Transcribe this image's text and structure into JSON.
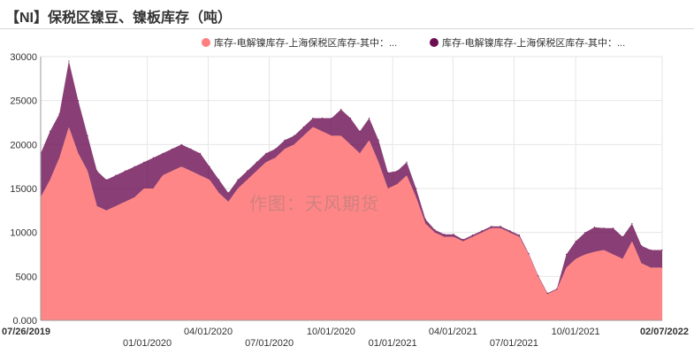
{
  "title": "【NI】保税区镍豆、镍板库存（吨）",
  "watermark": "作图：天风期货",
  "legend": [
    {
      "label": "库存-电解镍库存-上海保税区库存-其中：...",
      "color": "#ff7f7f"
    },
    {
      "label": "库存-电解镍库存-上海保税区库存-其中：...",
      "color": "#6b0f52"
    }
  ],
  "chart_data": {
    "type": "area",
    "stacked": true,
    "title": "【NI】保税区镍豆、镍板库存（吨）",
    "xlabel": "",
    "ylabel": "",
    "ylim": [
      0,
      30000
    ],
    "y_ticks": [
      "0.000",
      "5000",
      "10000",
      "15000",
      "20000",
      "25000",
      "30000"
    ],
    "x_ticks": [
      {
        "label": "07/26/2019",
        "date": "2019-07-26",
        "row": 0,
        "bold": true
      },
      {
        "label": "01/01/2020",
        "date": "2020-01-01",
        "row": 1,
        "bold": false
      },
      {
        "label": "04/01/2020",
        "date": "2020-04-01",
        "row": 0,
        "bold": false
      },
      {
        "label": "07/01/2020",
        "date": "2020-07-01",
        "row": 1,
        "bold": false
      },
      {
        "label": "10/01/2020",
        "date": "2020-10-01",
        "row": 0,
        "bold": false
      },
      {
        "label": "01/01/2021",
        "date": "2021-01-01",
        "row": 1,
        "bold": false
      },
      {
        "label": "04/01/2021",
        "date": "2021-04-01",
        "row": 0,
        "bold": false
      },
      {
        "label": "07/01/2021",
        "date": "2021-07-01",
        "row": 1,
        "bold": false
      },
      {
        "label": "10/01/2021",
        "date": "2021-10-01",
        "row": 0,
        "bold": false
      },
      {
        "label": "02/07/2022",
        "date": "2022-02-07",
        "row": 0,
        "bold": true
      }
    ],
    "x_range": [
      "2019-07-26",
      "2022-02-07"
    ],
    "grid": true,
    "legend_position": "top-right",
    "x": [
      "2019-07-26",
      "2019-08-09",
      "2019-08-23",
      "2019-09-06",
      "2019-09-20",
      "2019-10-04",
      "2019-10-18",
      "2019-11-01",
      "2019-11-15",
      "2019-11-29",
      "2019-12-13",
      "2019-12-27",
      "2020-01-10",
      "2020-01-24",
      "2020-02-07",
      "2020-02-21",
      "2020-03-06",
      "2020-03-20",
      "2020-04-03",
      "2020-04-17",
      "2020-05-01",
      "2020-05-15",
      "2020-05-29",
      "2020-06-12",
      "2020-06-26",
      "2020-07-10",
      "2020-07-24",
      "2020-08-07",
      "2020-08-21",
      "2020-09-04",
      "2020-09-18",
      "2020-10-02",
      "2020-10-16",
      "2020-10-30",
      "2020-11-13",
      "2020-11-27",
      "2020-12-11",
      "2020-12-25",
      "2021-01-08",
      "2021-01-22",
      "2021-02-05",
      "2021-02-19",
      "2021-03-05",
      "2021-03-19",
      "2021-04-02",
      "2021-04-16",
      "2021-04-30",
      "2021-05-14",
      "2021-05-28",
      "2021-06-11",
      "2021-06-25",
      "2021-07-09",
      "2021-07-23",
      "2021-08-06",
      "2021-08-20",
      "2021-09-03",
      "2021-09-17",
      "2021-10-01",
      "2021-10-15",
      "2021-10-29",
      "2021-11-12",
      "2021-11-26",
      "2021-12-10",
      "2021-12-24",
      "2022-01-07",
      "2022-01-21",
      "2022-02-07"
    ],
    "series": [
      {
        "name": "库存-电解镍库存-上海保税区库存-其中：...",
        "color": "#ff7f7f",
        "values": [
          14000,
          16000,
          18500,
          22000,
          19000,
          17000,
          13000,
          12500,
          13000,
          13500,
          14000,
          15000,
          15000,
          16500,
          17000,
          17500,
          17000,
          16500,
          16000,
          14500,
          13500,
          15000,
          16000,
          17000,
          18000,
          18500,
          19500,
          20000,
          21000,
          22000,
          21500,
          21000,
          21000,
          20000,
          19000,
          20500,
          18000,
          15000,
          15500,
          16500,
          14000,
          11000,
          10000,
          9500,
          9500,
          9000,
          9500,
          10000,
          10500,
          10500,
          10000,
          9500,
          7500,
          5000,
          3000,
          3500,
          6000,
          7000,
          7500,
          7800,
          8000,
          7500,
          7000,
          9000,
          6500,
          6000,
          6000
        ]
      },
      {
        "name": "库存-电解镍库存-上海保税区库存-其中：...",
        "color": "#6b0f52",
        "values": [
          5000,
          5500,
          5000,
          7500,
          6000,
          4000,
          4000,
          3500,
          3500,
          3500,
          3500,
          3000,
          3500,
          2500,
          2500,
          2500,
          2500,
          2500,
          1500,
          1500,
          1000,
          1000,
          1000,
          1000,
          1000,
          1000,
          1000,
          1000,
          1000,
          1000,
          1500,
          2000,
          3000,
          3000,
          2500,
          2500,
          2500,
          1800,
          1500,
          1500,
          1000,
          500,
          300,
          300,
          300,
          200,
          200,
          200,
          200,
          200,
          200,
          200,
          100,
          100,
          100,
          100,
          1500,
          2000,
          2500,
          2800,
          2500,
          3000,
          2500,
          2000,
          2000,
          2000,
          2000
        ]
      }
    ]
  }
}
